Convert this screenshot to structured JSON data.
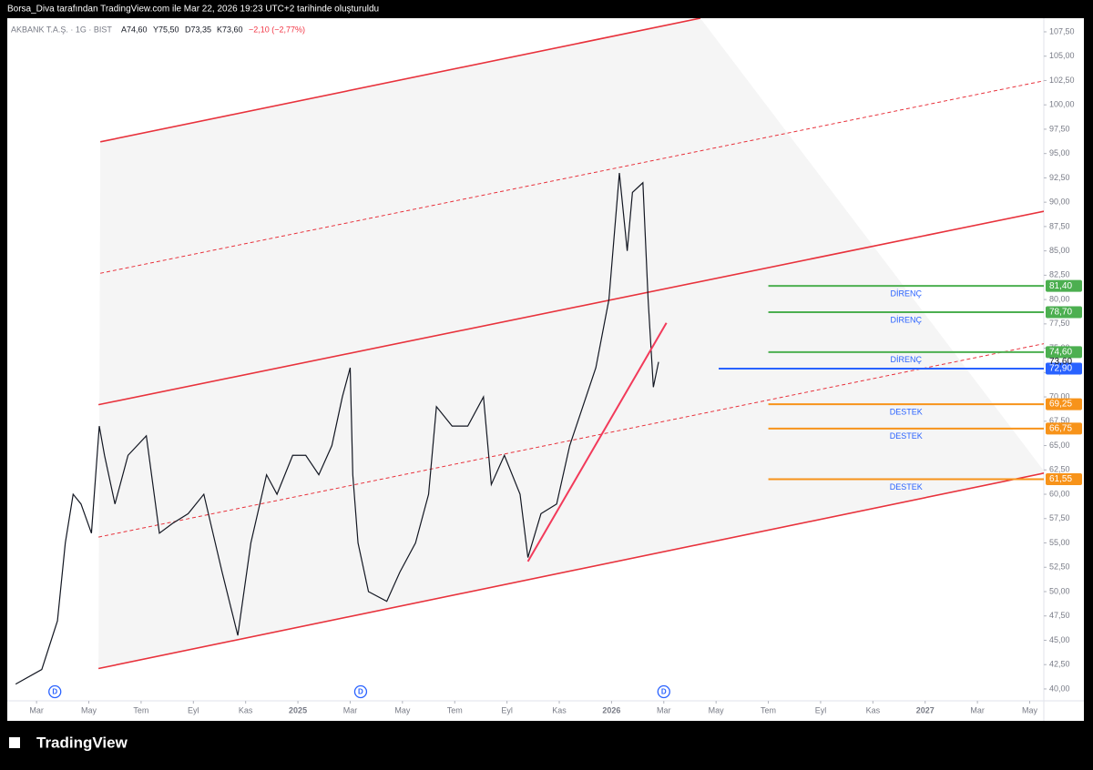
{
  "header": "Borsa_Diva tarafından TradingView.com ile Mar 22, 2026 19:23 UTC+2 tarihinde oluşturuldu",
  "footer": "TradingView",
  "chart_data": {
    "type": "line",
    "symbol": "AKBANK T.A.Ş. · 1G · BIST",
    "ohlc": [
      "A74,60",
      "Y75,50",
      "D73,35",
      "K73,60",
      "−2,10 (−2,77%)"
    ],
    "color": "#131722",
    "x": [
      -0.8,
      0.2,
      0.8,
      1.1,
      1.4,
      1.7,
      2.1,
      2.4,
      2.6,
      3.0,
      3.5,
      4.2,
      4.7,
      5.2,
      5.8,
      6.4,
      7.1,
      7.7,
      8.2,
      8.8,
      9.2,
      9.8,
      10.3,
      10.8,
      11.3,
      11.7,
      12.0,
      12.1,
      12.3,
      12.7,
      13.4,
      13.9,
      14.5,
      15.0,
      15.3,
      15.9,
      16.5,
      17.1,
      17.4,
      17.9,
      18.5,
      18.8,
      19.3,
      19.9,
      20.4,
      20.9,
      21.4,
      21.9,
      22.3,
      22.6,
      22.8,
      23.2,
      23.4,
      23.6,
      23.8
    ],
    "values": [
      40.5,
      42,
      47,
      55,
      60,
      59,
      56,
      67,
      64,
      59,
      64,
      66,
      56,
      57,
      58,
      60,
      52,
      45.5,
      55,
      62,
      60,
      64,
      64,
      62,
      65,
      70,
      73,
      62,
      55,
      50,
      49,
      52,
      55,
      60,
      69,
      67,
      67,
      70,
      61,
      64,
      60,
      53.5,
      58,
      59,
      65,
      69,
      73,
      80,
      93,
      85,
      91,
      92,
      80,
      71,
      73.6
    ],
    "xlim": [
      -1.12,
      38.54
    ],
    "ylim": [
      38.78,
      108.9
    ],
    "xticks": [
      {
        "value": 0,
        "label": "Mar"
      },
      {
        "value": 2,
        "label": "May"
      },
      {
        "value": 4,
        "label": "Tem"
      },
      {
        "value": 6,
        "label": "Eyl"
      },
      {
        "value": 8,
        "label": "Kas"
      },
      {
        "value": 10,
        "label": "2025"
      },
      {
        "value": 12,
        "label": "Mar"
      },
      {
        "value": 14,
        "label": "May"
      },
      {
        "value": 16,
        "label": "Tem"
      },
      {
        "value": 18,
        "label": "Eyl"
      },
      {
        "value": 20,
        "label": "Kas"
      },
      {
        "value": 22,
        "label": "2026"
      },
      {
        "value": 24,
        "label": "Mar"
      },
      {
        "value": 26,
        "label": "May"
      },
      {
        "value": 28,
        "label": "Tem"
      },
      {
        "value": 30,
        "label": "Eyl"
      },
      {
        "value": 32,
        "label": "Kas"
      },
      {
        "value": 34,
        "label": "2027"
      },
      {
        "value": 36,
        "label": "Mar"
      },
      {
        "value": 38,
        "label": "May"
      }
    ],
    "yticks": [
      {
        "value": 40,
        "label": "40,00"
      },
      {
        "value": 42.5,
        "label": "42,50"
      },
      {
        "value": 45,
        "label": "45,00"
      },
      {
        "value": 47.5,
        "label": "47,50"
      },
      {
        "value": 50,
        "label": "50,00"
      },
      {
        "value": 52.5,
        "label": "52,50"
      },
      {
        "value": 55,
        "label": "55,00"
      },
      {
        "value": 57.5,
        "label": "57,50"
      },
      {
        "value": 60,
        "label": "60,00"
      },
      {
        "value": 62.5,
        "label": "62,50"
      },
      {
        "value": 65,
        "label": "65,00"
      },
      {
        "value": 67.5,
        "label": "67,50"
      },
      {
        "value": 70,
        "label": "70,00"
      },
      {
        "value": 72.5,
        "label": "72,50"
      },
      {
        "value": 75,
        "label": "75,00"
      },
      {
        "value": 77.5,
        "label": "77,50"
      },
      {
        "value": 80,
        "label": "80,00"
      },
      {
        "value": 82.5,
        "label": "82,50"
      },
      {
        "value": 85,
        "label": "85,00"
      },
      {
        "value": 87.5,
        "label": "87,50"
      },
      {
        "value": 90,
        "label": "90,00"
      },
      {
        "value": 92.5,
        "label": "92,50"
      },
      {
        "value": 95,
        "label": "95,00"
      },
      {
        "value": 97.5,
        "label": "97,50"
      },
      {
        "value": 100,
        "label": "100,00"
      },
      {
        "value": 102.5,
        "label": "102,50"
      },
      {
        "value": 105,
        "label": "105,00"
      },
      {
        "value": 107.5,
        "label": "107,50"
      }
    ],
    "channel": [
      {
        "x": [
          2.44,
          25.4
        ],
        "values": [
          96.2,
          108.9
        ],
        "dashed": false
      },
      {
        "x": [
          2.44,
          38.6
        ],
        "values": [
          82.7,
          102.5
        ],
        "dashed": true
      },
      {
        "x": [
          2.37,
          38.6
        ],
        "values": [
          69.2,
          89.1
        ],
        "dashed": false
      },
      {
        "x": [
          2.37,
          38.6
        ],
        "values": [
          55.6,
          75.5
        ],
        "dashed": true
      },
      {
        "x": [
          2.37,
          38.6
        ],
        "values": [
          42.1,
          62.2
        ],
        "dashed": false
      }
    ],
    "channel_color": "#e8323c",
    "trendline": {
      "x": [
        18.8,
        24.1
      ],
      "values": [
        53.1,
        77.6
      ],
      "color": "#f23a5a"
    },
    "levels": {
      "names": [
        "DİRENÇ",
        "DİRENÇ",
        "DİRENÇ",
        null,
        "DESTEK",
        "DESTEK",
        "DESTEK"
      ],
      "values": [
        81.4,
        78.7,
        74.6,
        72.9,
        69.25,
        66.75,
        61.55
      ],
      "value_labels": [
        "81,40",
        "78,70",
        "74,60",
        "72,90",
        "69,25",
        "66,75",
        "61,55"
      ],
      "colors": [
        "#4caf50",
        "#4caf50",
        "#4caf50",
        "#2962ff",
        "#f7931a",
        "#f7931a",
        "#f7931a"
      ],
      "start": [
        28,
        28,
        28,
        26.1,
        28,
        28,
        28
      ]
    },
    "last_price": {
      "value": 73.6,
      "label": "73,60"
    },
    "dividends": {
      "x": [
        0.7,
        12.4,
        24.0
      ],
      "label": "D"
    }
  }
}
